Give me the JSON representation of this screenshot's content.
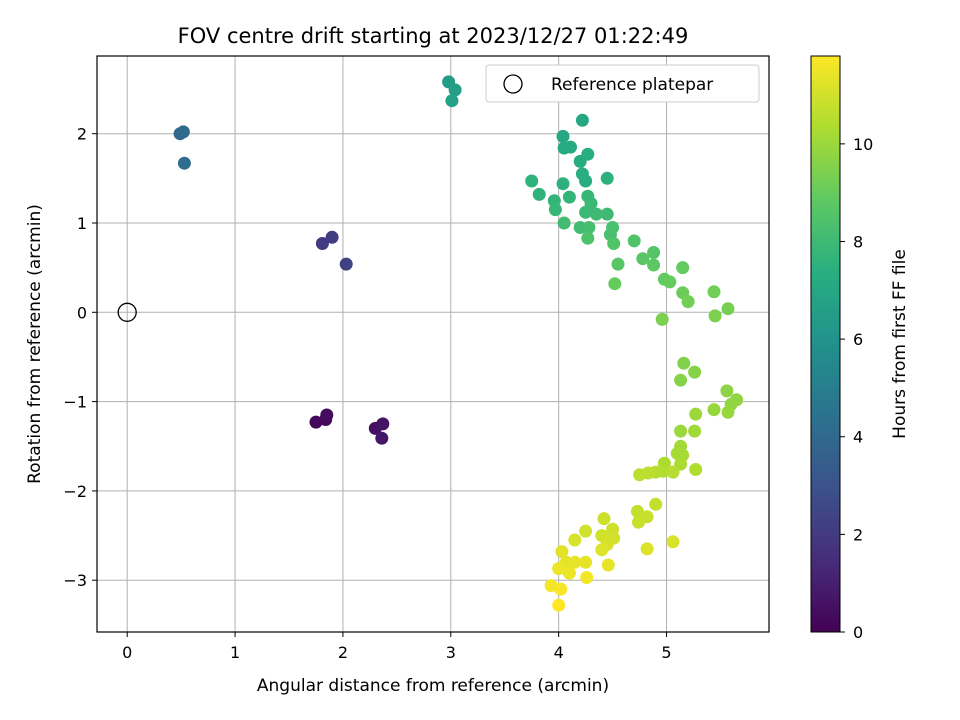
{
  "chart_data": {
    "type": "scatter",
    "title": "FOV centre drift starting at 2023/12/27 01:22:49",
    "xlabel": "Angular distance from reference (arcmin)",
    "ylabel": "Rotation from reference (arcmin)",
    "xlim": [
      -0.28,
      5.95
    ],
    "ylim": [
      -3.58,
      2.87
    ],
    "x_ticks": [
      0,
      1,
      2,
      3,
      4,
      5
    ],
    "y_ticks": [
      -3,
      -2,
      -1,
      0,
      1,
      2
    ],
    "grid": true,
    "legend": {
      "position": "top-right",
      "entries": [
        "Reference platepar"
      ]
    },
    "reference_point": {
      "x": 0,
      "y": 0
    },
    "colorbar": {
      "label": "Hours from first FF file",
      "colormap": "viridis",
      "range": [
        0,
        11.8
      ],
      "ticks": [
        0,
        2,
        4,
        6,
        8,
        10
      ]
    },
    "points": [
      [
        1.75,
        -1.23,
        0.2
      ],
      [
        1.84,
        -1.2,
        0.3
      ],
      [
        1.85,
        -1.15,
        0.4
      ],
      [
        2.3,
        -1.3,
        0.5
      ],
      [
        2.37,
        -1.25,
        0.6
      ],
      [
        2.36,
        -1.41,
        0.7
      ],
      [
        1.81,
        0.77,
        2.0
      ],
      [
        1.9,
        0.84,
        2.1
      ],
      [
        2.03,
        0.54,
        2.3
      ],
      [
        0.49,
        2.0,
        4.0
      ],
      [
        0.52,
        2.02,
        4.1
      ],
      [
        0.53,
        1.67,
        4.2
      ],
      [
        2.98,
        2.58,
        6.5
      ],
      [
        3.04,
        2.49,
        6.6
      ],
      [
        3.01,
        2.37,
        6.7
      ],
      [
        4.04,
        1.97,
        7.0
      ],
      [
        4.22,
        2.15,
        7.0
      ],
      [
        4.05,
        1.84,
        7.1
      ],
      [
        4.11,
        1.85,
        7.2
      ],
      [
        4.2,
        1.69,
        7.2
      ],
      [
        4.27,
        1.77,
        7.3
      ],
      [
        4.22,
        1.55,
        7.4
      ],
      [
        4.25,
        1.47,
        7.4
      ],
      [
        4.04,
        1.44,
        7.5
      ],
      [
        4.45,
        1.5,
        7.5
      ],
      [
        3.75,
        1.47,
        7.6
      ],
      [
        3.82,
        1.32,
        7.6
      ],
      [
        3.96,
        1.25,
        7.7
      ],
      [
        4.1,
        1.29,
        7.7
      ],
      [
        4.27,
        1.3,
        7.8
      ],
      [
        3.97,
        1.15,
        7.8
      ],
      [
        4.3,
        1.22,
        7.9
      ],
      [
        4.25,
        1.12,
        7.9
      ],
      [
        4.35,
        1.1,
        8.0
      ],
      [
        4.45,
        1.1,
        8.0
      ],
      [
        4.05,
        1.0,
        8.1
      ],
      [
        4.2,
        0.95,
        8.1
      ],
      [
        4.28,
        0.95,
        8.2
      ],
      [
        4.5,
        0.95,
        8.3
      ],
      [
        4.48,
        0.87,
        8.3
      ],
      [
        4.27,
        0.83,
        8.4
      ],
      [
        4.51,
        0.77,
        8.5
      ],
      [
        4.7,
        0.8,
        8.5
      ],
      [
        4.88,
        0.67,
        8.6
      ],
      [
        4.55,
        0.54,
        8.7
      ],
      [
        4.78,
        0.6,
        8.7
      ],
      [
        4.88,
        0.53,
        8.8
      ],
      [
        5.15,
        0.5,
        8.9
      ],
      [
        4.98,
        0.37,
        8.9
      ],
      [
        5.03,
        0.34,
        9.0
      ],
      [
        4.52,
        0.32,
        9.0
      ],
      [
        5.15,
        0.22,
        9.1
      ],
      [
        5.44,
        0.23,
        9.2
      ],
      [
        5.2,
        0.12,
        9.2
      ],
      [
        5.57,
        0.04,
        9.3
      ],
      [
        5.45,
        -0.04,
        9.4
      ],
      [
        4.96,
        -0.08,
        9.4
      ],
      [
        5.16,
        -0.57,
        9.5
      ],
      [
        5.26,
        -0.67,
        9.6
      ],
      [
        5.13,
        -0.76,
        9.6
      ],
      [
        5.56,
        -0.88,
        9.7
      ],
      [
        5.65,
        -0.98,
        9.8
      ],
      [
        5.6,
        -1.03,
        9.8
      ],
      [
        5.44,
        -1.09,
        9.9
      ],
      [
        5.57,
        -1.12,
        9.9
      ],
      [
        5.27,
        -1.14,
        10.0
      ],
      [
        5.13,
        -1.33,
        10.0
      ],
      [
        5.26,
        -1.33,
        10.1
      ],
      [
        5.13,
        -1.5,
        10.1
      ],
      [
        5.1,
        -1.58,
        10.2
      ],
      [
        5.15,
        -1.6,
        10.2
      ],
      [
        4.98,
        -1.69,
        10.3
      ],
      [
        5.13,
        -1.7,
        10.3
      ],
      [
        4.97,
        -1.78,
        10.4
      ],
      [
        5.27,
        -1.76,
        10.4
      ],
      [
        5.06,
        -1.79,
        10.5
      ],
      [
        4.9,
        -1.79,
        10.5
      ],
      [
        4.83,
        -1.8,
        10.6
      ],
      [
        4.75,
        -1.82,
        10.6
      ],
      [
        4.9,
        -2.15,
        10.7
      ],
      [
        4.73,
        -2.23,
        10.7
      ],
      [
        4.82,
        -2.29,
        10.8
      ],
      [
        4.74,
        -2.35,
        10.8
      ],
      [
        4.42,
        -2.31,
        10.9
      ],
      [
        4.5,
        -2.43,
        10.9
      ],
      [
        4.25,
        -2.45,
        11.0
      ],
      [
        4.4,
        -2.5,
        11.0
      ],
      [
        4.51,
        -2.53,
        11.0
      ],
      [
        4.15,
        -2.55,
        11.1
      ],
      [
        4.45,
        -2.6,
        11.1
      ],
      [
        4.4,
        -2.66,
        11.2
      ],
      [
        4.82,
        -2.65,
        11.2
      ],
      [
        5.06,
        -2.57,
        11.1
      ],
      [
        4.03,
        -2.68,
        11.3
      ],
      [
        4.07,
        -2.8,
        11.3
      ],
      [
        4.15,
        -2.8,
        11.4
      ],
      [
        4.25,
        -2.8,
        11.4
      ],
      [
        4.46,
        -2.83,
        11.4
      ],
      [
        4.0,
        -2.87,
        11.5
      ],
      [
        4.1,
        -2.92,
        11.5
      ],
      [
        4.26,
        -2.97,
        11.6
      ],
      [
        3.93,
        -3.06,
        11.6
      ],
      [
        4.02,
        -3.1,
        11.7
      ],
      [
        4.0,
        -3.28,
        11.8
      ]
    ]
  }
}
